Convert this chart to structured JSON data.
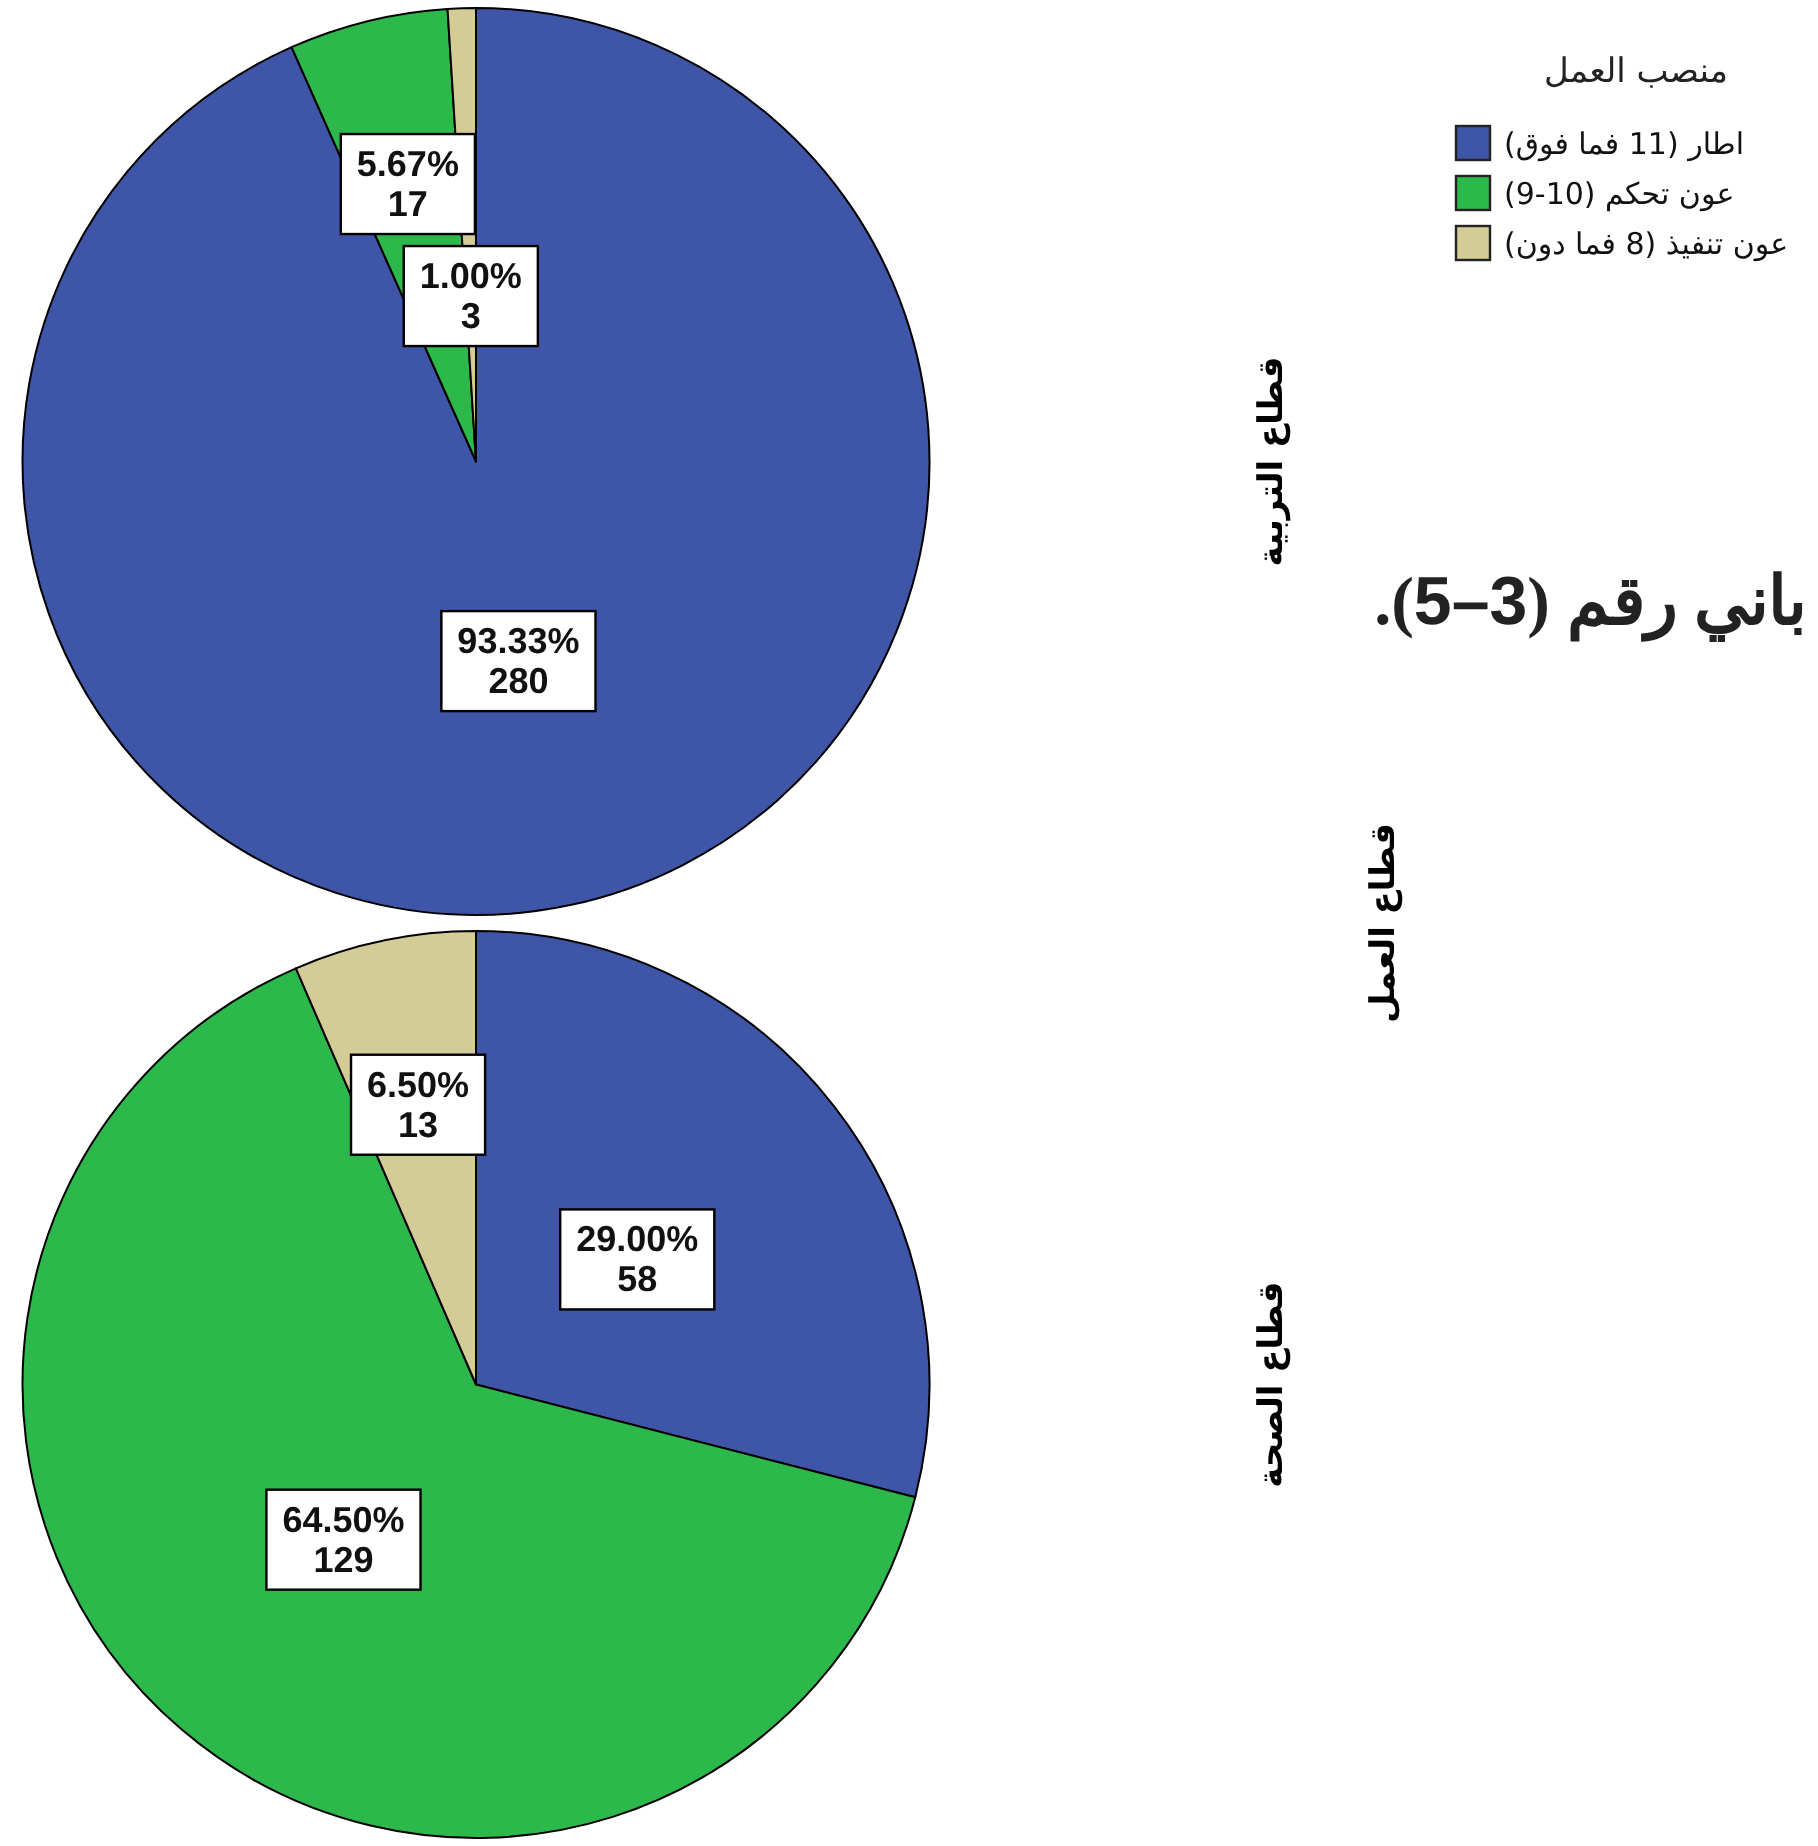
{
  "chart_data": [
    {
      "type": "pie",
      "title": "قطاع التربية",
      "ylabel": "قطاع العمل",
      "legend_title": "منصب العمل",
      "legend": "top right",
      "categories": [
        "اطار (11 فما فوق)",
        "عون تحكم (10-9)",
        "عون تنفيذ (8 فما دون)"
      ],
      "values": [
        280,
        17,
        3
      ],
      "colors": [
        "#3e55a8",
        "#2db84b",
        "#d4cc97"
      ],
      "value_labels": [
        "93.33%\n280",
        "5.67%\n17",
        "1.00%\n3"
      ],
      "annotations": [
        "باني رقم (3–5)."
      ]
    },
    {
      "type": "pie",
      "title": "قطاع الصحة",
      "legend": false,
      "categories": [
        null,
        null,
        null
      ],
      "values": [
        58,
        129,
        13
      ],
      "colors": [
        "#3e55a8",
        "#2db84b",
        "#d4cc97"
      ],
      "value_labels": [
        "29.00%\n58",
        "64.50%\n129",
        "6.50%\n13"
      ]
    }
  ]
}
